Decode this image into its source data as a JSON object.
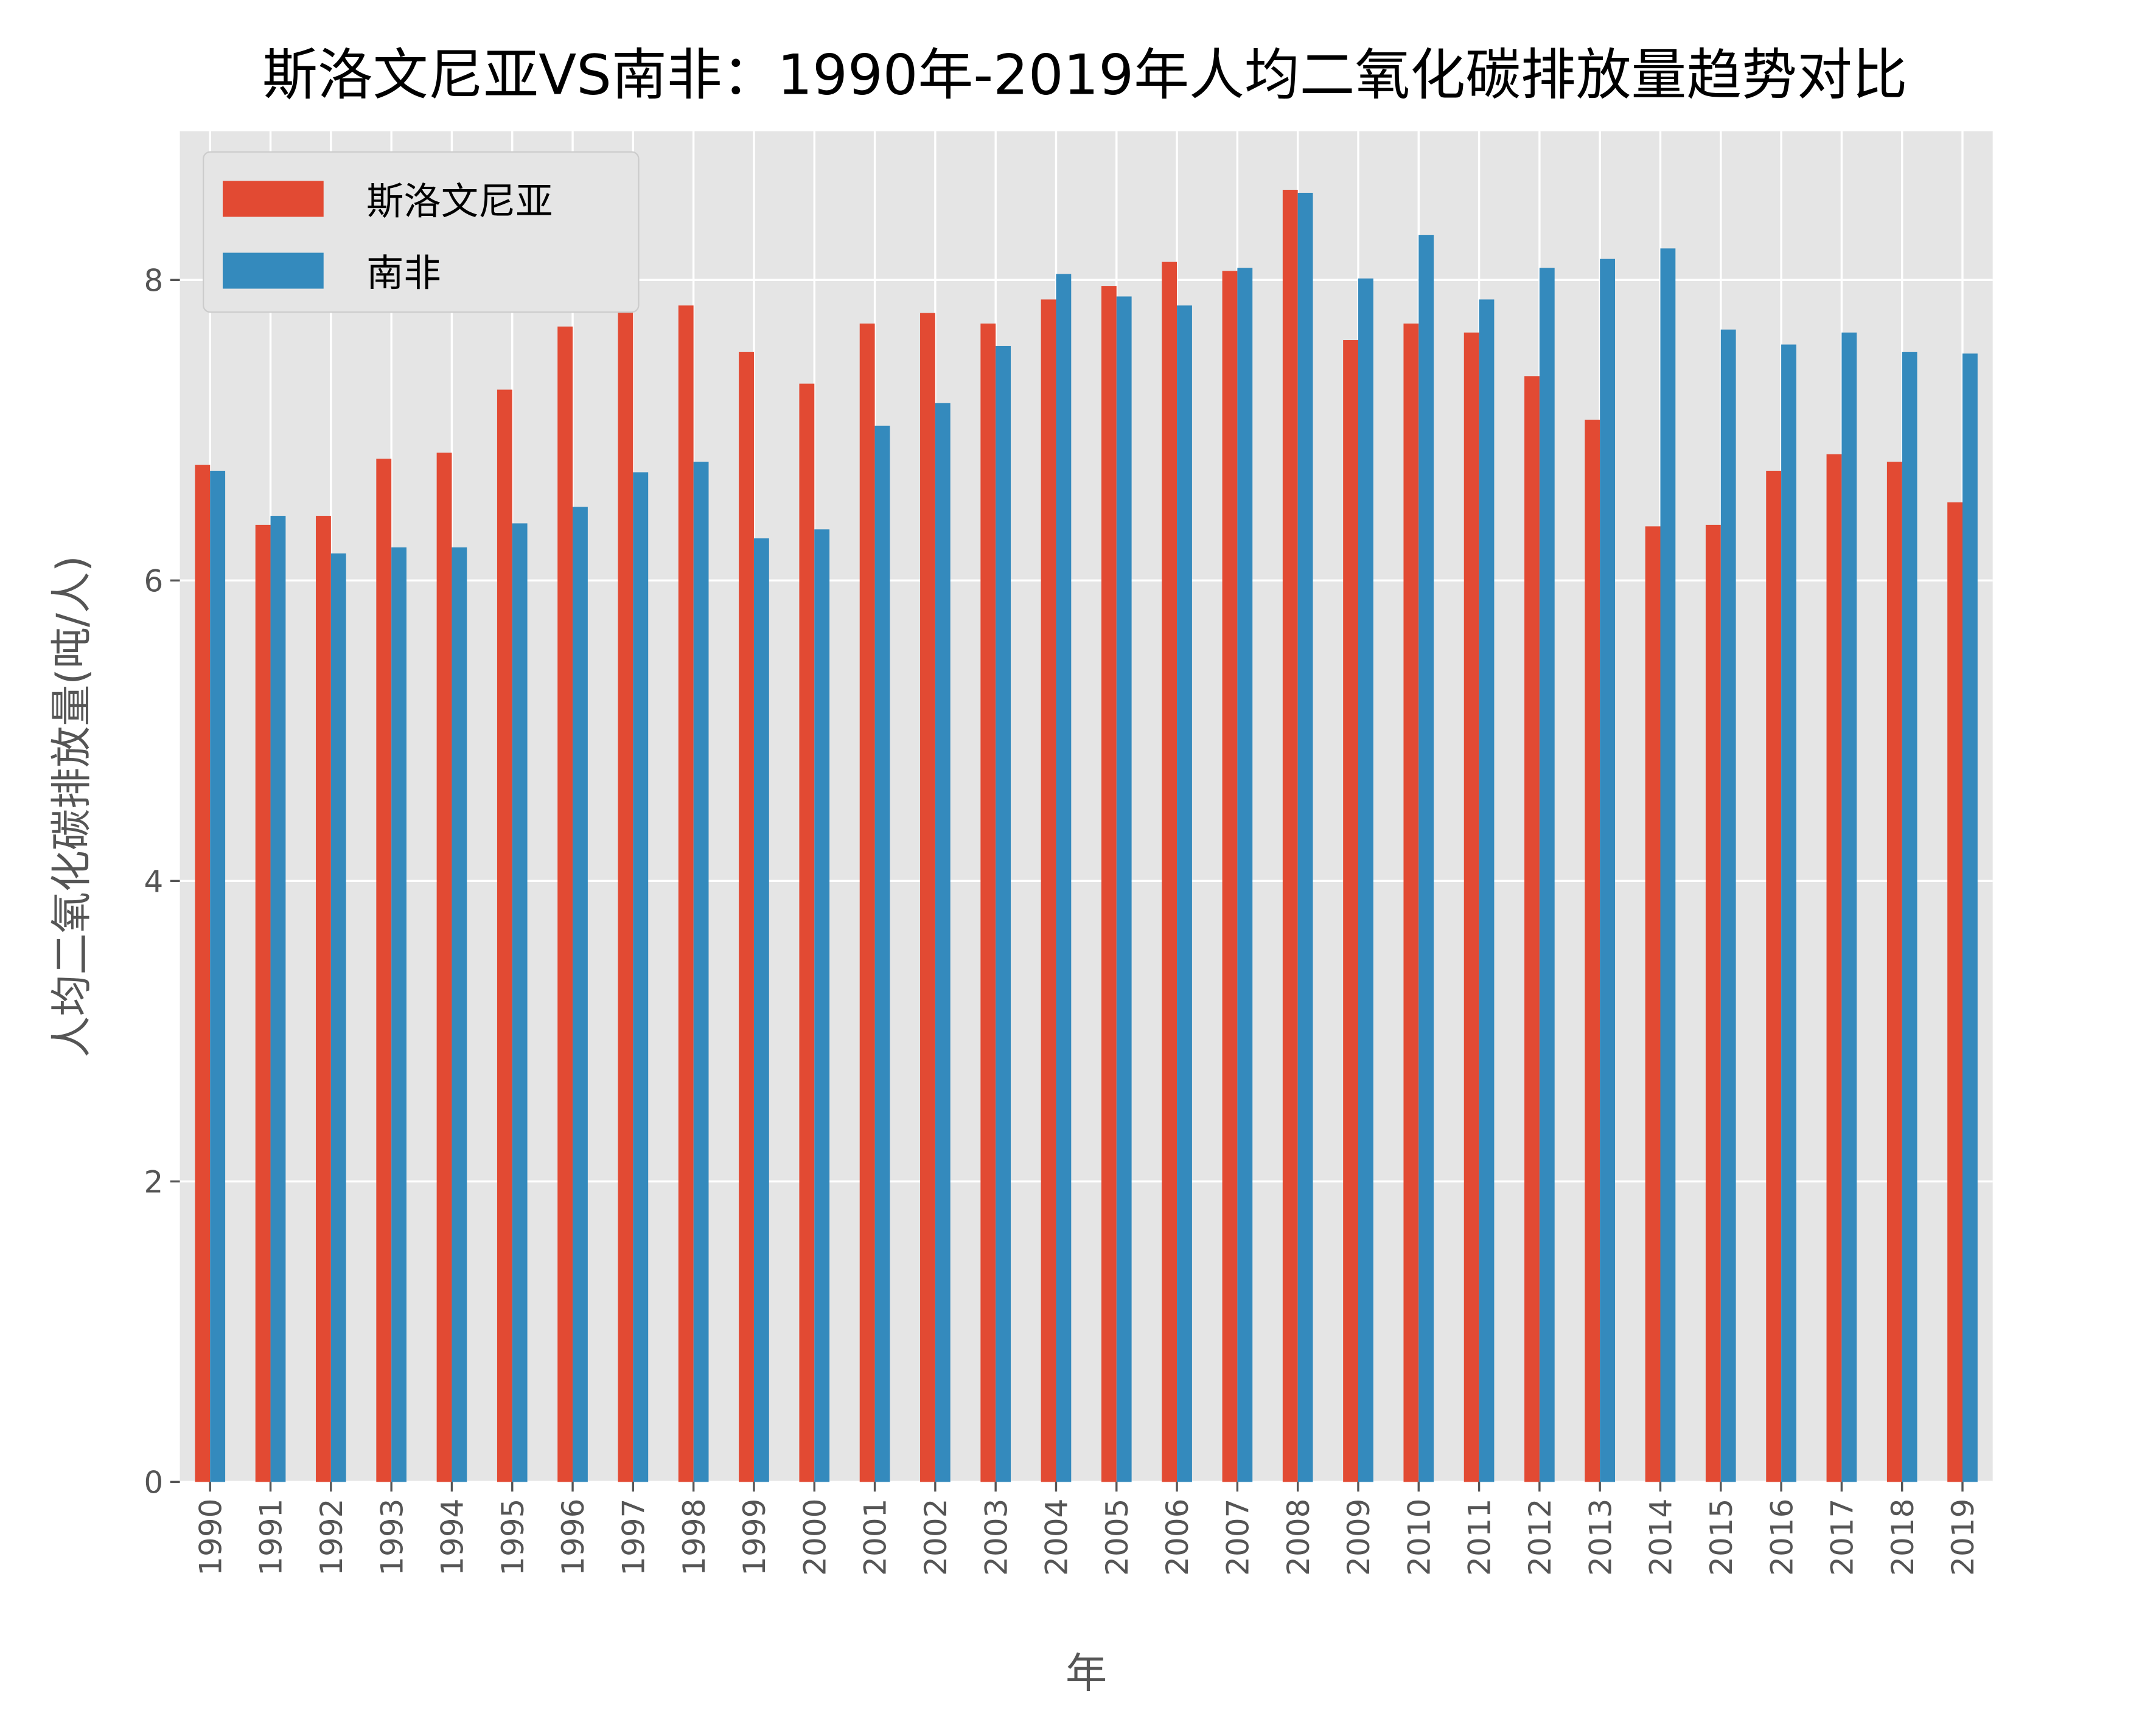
{
  "chart_data": {
    "type": "bar",
    "title": "斯洛文尼亚VS南非：1990年-2019年人均二氧化碳排放量趋势对比",
    "xlabel": "年",
    "ylabel": "人均二氧化碳排放量(吨/人)",
    "ylim": [
      0,
      8.99
    ],
    "yticks": [
      0,
      2,
      4,
      6,
      8
    ],
    "grid": true,
    "legend_placement": "top-left",
    "categories": [
      "1990",
      "1991",
      "1992",
      "1993",
      "1994",
      "1995",
      "1996",
      "1997",
      "1998",
      "1999",
      "2000",
      "2001",
      "2002",
      "2003",
      "2004",
      "2005",
      "2006",
      "2007",
      "2008",
      "2009",
      "2010",
      "2011",
      "2012",
      "2013",
      "2014",
      "2015",
      "2016",
      "2017",
      "2018",
      "2019"
    ],
    "series": [
      {
        "name": "斯洛文尼亚",
        "color": "#E24A33",
        "values": [
          6.77,
          6.37,
          6.43,
          6.81,
          6.85,
          7.27,
          7.69,
          7.92,
          7.83,
          7.52,
          7.31,
          7.71,
          7.78,
          7.71,
          7.87,
          7.96,
          8.12,
          8.06,
          8.6,
          7.6,
          7.71,
          7.65,
          7.36,
          7.07,
          6.36,
          6.37,
          6.73,
          6.84,
          6.79,
          6.52
        ]
      },
      {
        "name": "南非",
        "color": "#348ABD",
        "values": [
          6.73,
          6.43,
          6.18,
          6.22,
          6.22,
          6.38,
          6.49,
          6.72,
          6.79,
          6.28,
          6.34,
          7.03,
          7.18,
          7.56,
          8.04,
          7.89,
          7.83,
          8.08,
          8.58,
          8.01,
          8.3,
          7.87,
          8.08,
          8.14,
          8.21,
          7.67,
          7.57,
          7.65,
          7.52,
          7.51
        ]
      }
    ]
  }
}
